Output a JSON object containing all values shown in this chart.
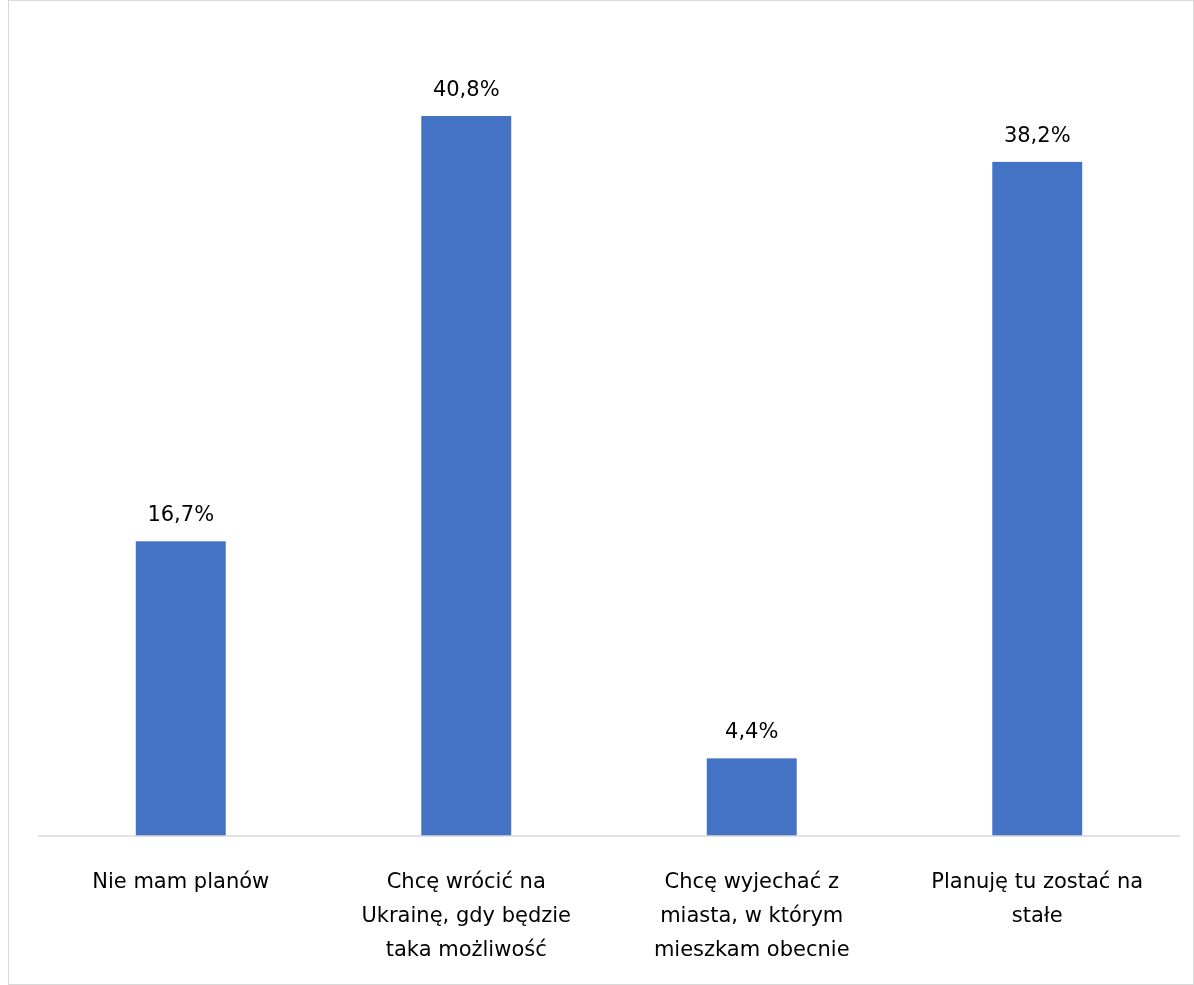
{
  "chart_data": {
    "type": "bar",
    "categories": [
      "Nie mam planów",
      "Chcę wrócić na Ukrainę, gdy będzie taka możliwość",
      "Chcę wyjechać z miasta, w którym mieszkam obecnie",
      "Planuję tu zostać na stałe"
    ],
    "values": [
      16.7,
      40.8,
      4.4,
      38.2
    ],
    "value_labels": [
      "16,7%",
      "40,8%",
      "4,4%",
      "38,2%"
    ],
    "color": "#4472c4"
  }
}
